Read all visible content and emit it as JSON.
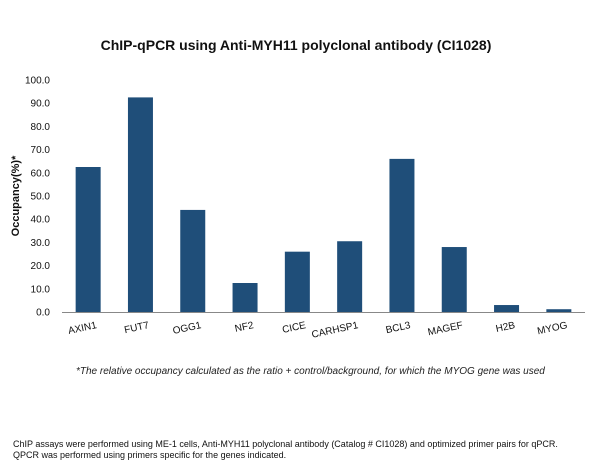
{
  "chart_data": {
    "type": "bar",
    "title": "ChIP-qPCR using Anti-MYH11 polyclonal antibody (CI1028)",
    "ylabel": "Occupancy(%)*",
    "xlabel": "",
    "ylim": [
      0,
      100
    ],
    "yticks": [
      "0.0",
      "10.0",
      "20.0",
      "30.0",
      "40.0",
      "50.0",
      "60.0",
      "70.0",
      "80.0",
      "90.0",
      "100.0"
    ],
    "categories": [
      "AXIN1",
      "FUT7",
      "OGG1",
      "NF2",
      "CICE",
      "CARHSP1",
      "BCL3",
      "MAGEF",
      "H2B",
      "MYOG"
    ],
    "values": [
      62.5,
      92.5,
      44.0,
      12.5,
      26.0,
      30.5,
      66.0,
      28.0,
      3.0,
      1.2
    ],
    "bar_color": "#1f4e79",
    "grid": false,
    "legend": "none"
  },
  "footnote": "*The relative occupancy calculated as the ratio + control/background, for which the MYOG gene was used",
  "caption": "ChIP assays were performed using ME-1 cells, Anti-MYH11 polyclonal antibody (Catalog # CI1028) and optimized primer pairs for qPCR. QPCR was performed using primers specific for the genes indicated."
}
